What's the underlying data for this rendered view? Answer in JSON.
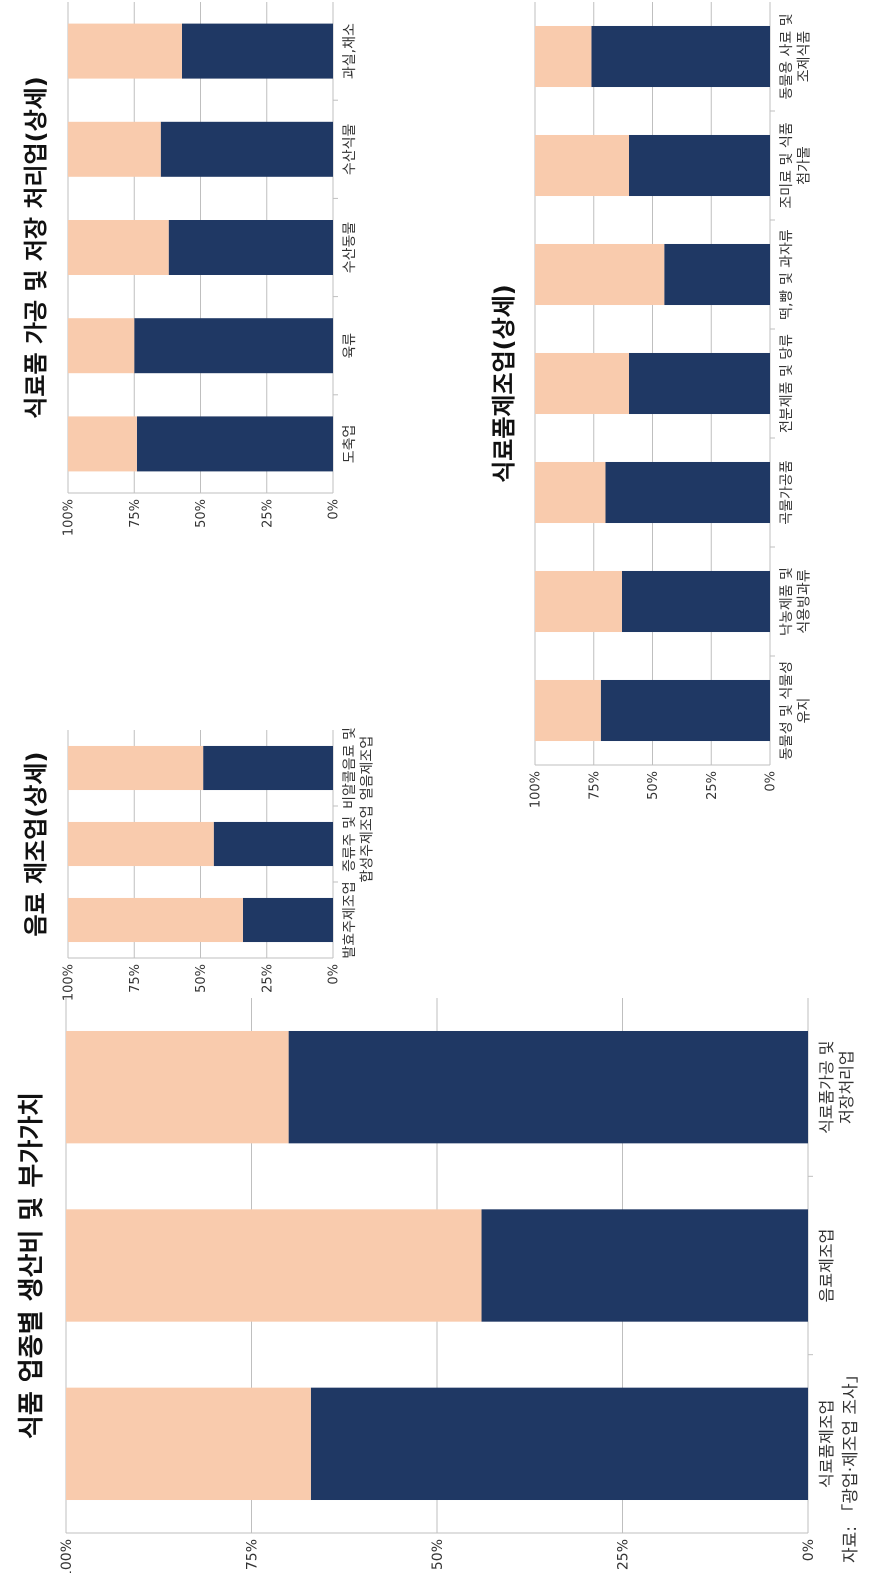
{
  "colors": {
    "value_added": "#f9cbad",
    "production_cost": "#1f3864",
    "grid": "#bfbfbf",
    "axis_text": "#333333",
    "title_text": "#111111"
  },
  "source_note": "자료: 「광업·제조업 조사」",
  "chart_data": [
    {
      "type": "bar",
      "stacked": true,
      "title": "식품 업종별 생산비 및 부가가치",
      "y_tick_labels": [
        "0%",
        "25%",
        "50%",
        "75%",
        "100%"
      ],
      "ylim": [
        0,
        100
      ],
      "grid": true,
      "categories": [
        [
          "식료품제조업"
        ],
        [
          "음료제조업"
        ],
        [
          "식료품가공 및",
          "저장처리업"
        ]
      ],
      "series": [
        {
          "color_key": "production_cost",
          "values": [
            67,
            44,
            70
          ]
        },
        {
          "color_key": "value_added",
          "values": [
            33,
            56,
            30
          ]
        }
      ]
    },
    {
      "type": "bar",
      "stacked": true,
      "title": "음료 제조업(상세)",
      "y_tick_labels": [
        "0%",
        "25%",
        "50%",
        "75%",
        "100%"
      ],
      "ylim": [
        0,
        100
      ],
      "grid": true,
      "categories": [
        [
          "발효주제조업"
        ],
        [
          "증류주 및",
          "합성주제조업"
        ],
        [
          "비알콜음료 및",
          "얼음제조업"
        ]
      ],
      "series": [
        {
          "color_key": "production_cost",
          "values": [
            34,
            45,
            49
          ]
        },
        {
          "color_key": "value_added",
          "values": [
            66,
            55,
            51
          ]
        }
      ]
    },
    {
      "type": "bar",
      "stacked": true,
      "title": "식료품 가공 및 저장 처리업(상세)",
      "y_tick_labels": [
        "0%",
        "25%",
        "50%",
        "75%",
        "100%"
      ],
      "ylim": [
        0,
        100
      ],
      "grid": true,
      "categories": [
        [
          "도축업"
        ],
        [
          "육류"
        ],
        [
          "수산동물"
        ],
        [
          "수산식물"
        ],
        [
          "과실,채소"
        ]
      ],
      "series": [
        {
          "color_key": "production_cost",
          "values": [
            74,
            75,
            62,
            65,
            57
          ]
        },
        {
          "color_key": "value_added",
          "values": [
            26,
            25,
            38,
            35,
            43
          ]
        }
      ]
    },
    {
      "type": "bar",
      "stacked": true,
      "title": "식료품제조업(상세)",
      "y_tick_labels": [
        "0%",
        "25%",
        "50%",
        "75%",
        "100%"
      ],
      "ylim": [
        0,
        100
      ],
      "grid": true,
      "categories": [
        [
          "동물성 및 식물성",
          "유지"
        ],
        [
          "낙농제품 및",
          "식용빙과류"
        ],
        [
          "곡물가공품"
        ],
        [
          "전분제품 및 당류"
        ],
        [
          "떡,빵 및 과자류"
        ],
        [
          "조미료 및 식품",
          "첨가물"
        ],
        [
          "동물용 사료 및",
          "조제식품"
        ]
      ],
      "series": [
        {
          "color_key": "production_cost",
          "values": [
            72,
            63,
            70,
            60,
            45,
            60,
            76
          ]
        },
        {
          "color_key": "value_added",
          "values": [
            28,
            37,
            30,
            40,
            55,
            40,
            24
          ]
        }
      ]
    }
  ]
}
